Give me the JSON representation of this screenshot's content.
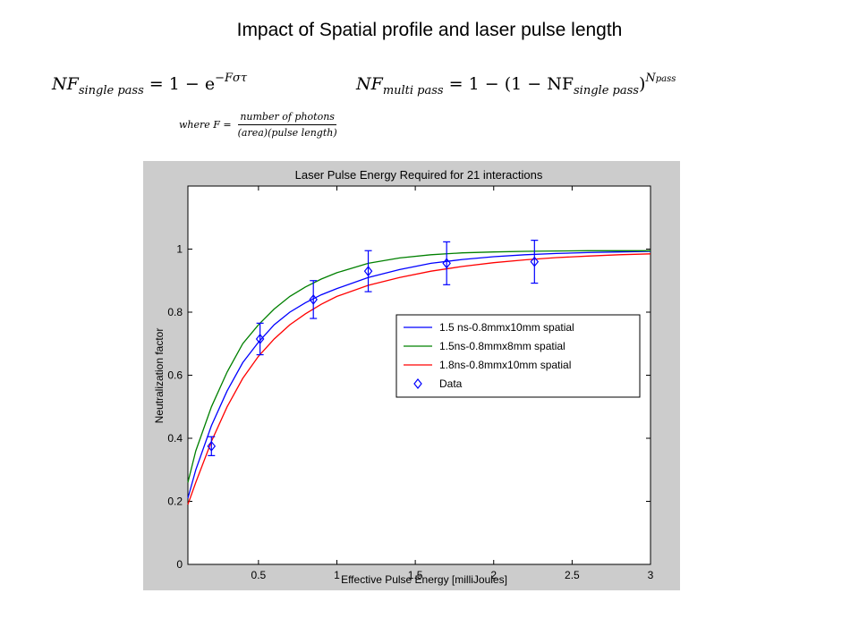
{
  "slide": {
    "title": "Impact of Spatial profile and laser pulse length",
    "eq1": {
      "lhs": "NF",
      "lhs_sub": "single pass",
      "rhs": "= 1 − e",
      "rhs_sup": "−Fστ"
    },
    "eq2": {
      "lhs": "NF",
      "lhs_sub": "multi pass",
      "rhs": "= 1 − (1 − NF",
      "rhs_sub": "single pass",
      "rhs_close": ")",
      "rhs_sup": "N",
      "rhs_sup_sub": "pass"
    },
    "where": {
      "prefix": "where  F =",
      "numerator": "number of photons",
      "denominator": "(area)(pulse length)"
    }
  },
  "chart_data": {
    "type": "line",
    "title": "Laser Pulse Energy Required for 21 interactions",
    "xlabel": "Effective Pulse Energy [milliJoules]",
    "ylabel": "Neutralization factor",
    "xlim": [
      0.05,
      3
    ],
    "ylim": [
      0,
      1.2
    ],
    "xticks": [
      0.5,
      1,
      1.5,
      2,
      2.5,
      3
    ],
    "xtick_labels": [
      "0.5",
      "1",
      "1.5",
      "2",
      "2.5",
      "3"
    ],
    "yticks": [
      0,
      0.2,
      0.4,
      0.6,
      0.8,
      1
    ],
    "ytick_labels": [
      "0",
      "0.2",
      "0.4",
      "0.6",
      "0.8",
      "1"
    ],
    "grid": false,
    "legend_position": "center-right",
    "series": [
      {
        "name": "1.5 ns-0.8mmx10mm spatial",
        "color": "#0000ff",
        "x": [
          0.05,
          0.1,
          0.2,
          0.3,
          0.4,
          0.5,
          0.6,
          0.7,
          0.8,
          0.9,
          1.0,
          1.2,
          1.4,
          1.6,
          1.8,
          2.0,
          2.2,
          2.4,
          2.6,
          2.8,
          3.0
        ],
        "y": [
          0.21,
          0.3,
          0.44,
          0.55,
          0.64,
          0.705,
          0.76,
          0.8,
          0.83,
          0.855,
          0.875,
          0.91,
          0.935,
          0.955,
          0.967,
          0.976,
          0.982,
          0.986,
          0.989,
          0.991,
          0.993
        ]
      },
      {
        "name": "1.5ns-0.8mmx8mm spatial",
        "color": "#008000",
        "x": [
          0.05,
          0.1,
          0.2,
          0.3,
          0.4,
          0.5,
          0.6,
          0.7,
          0.8,
          0.9,
          1.0,
          1.2,
          1.4,
          1.6,
          1.8,
          2.0,
          2.2,
          2.4,
          2.6,
          2.8,
          3.0
        ],
        "y": [
          0.26,
          0.36,
          0.5,
          0.61,
          0.7,
          0.76,
          0.81,
          0.85,
          0.88,
          0.905,
          0.925,
          0.955,
          0.972,
          0.982,
          0.988,
          0.991,
          0.993,
          0.994,
          0.995,
          0.995,
          0.995
        ]
      },
      {
        "name": "1.8ns-0.8mmx10mm spatial",
        "color": "#ff0000",
        "x": [
          0.05,
          0.1,
          0.2,
          0.3,
          0.4,
          0.5,
          0.6,
          0.7,
          0.8,
          0.9,
          1.0,
          1.2,
          1.4,
          1.6,
          1.8,
          2.0,
          2.2,
          2.4,
          2.6,
          2.8,
          3.0
        ],
        "y": [
          0.19,
          0.26,
          0.39,
          0.5,
          0.59,
          0.66,
          0.715,
          0.76,
          0.795,
          0.825,
          0.85,
          0.885,
          0.91,
          0.93,
          0.945,
          0.957,
          0.966,
          0.973,
          0.978,
          0.982,
          0.985
        ]
      }
    ],
    "data_series": {
      "name": "Data",
      "color": "#0000ff",
      "marker": "diamond",
      "x": [
        0.2,
        0.51,
        0.85,
        1.2,
        1.7,
        2.26
      ],
      "y": [
        0.375,
        0.715,
        0.84,
        0.93,
        0.955,
        0.96
      ],
      "err": [
        0.03,
        0.05,
        0.06,
        0.065,
        0.068,
        0.068
      ]
    }
  }
}
